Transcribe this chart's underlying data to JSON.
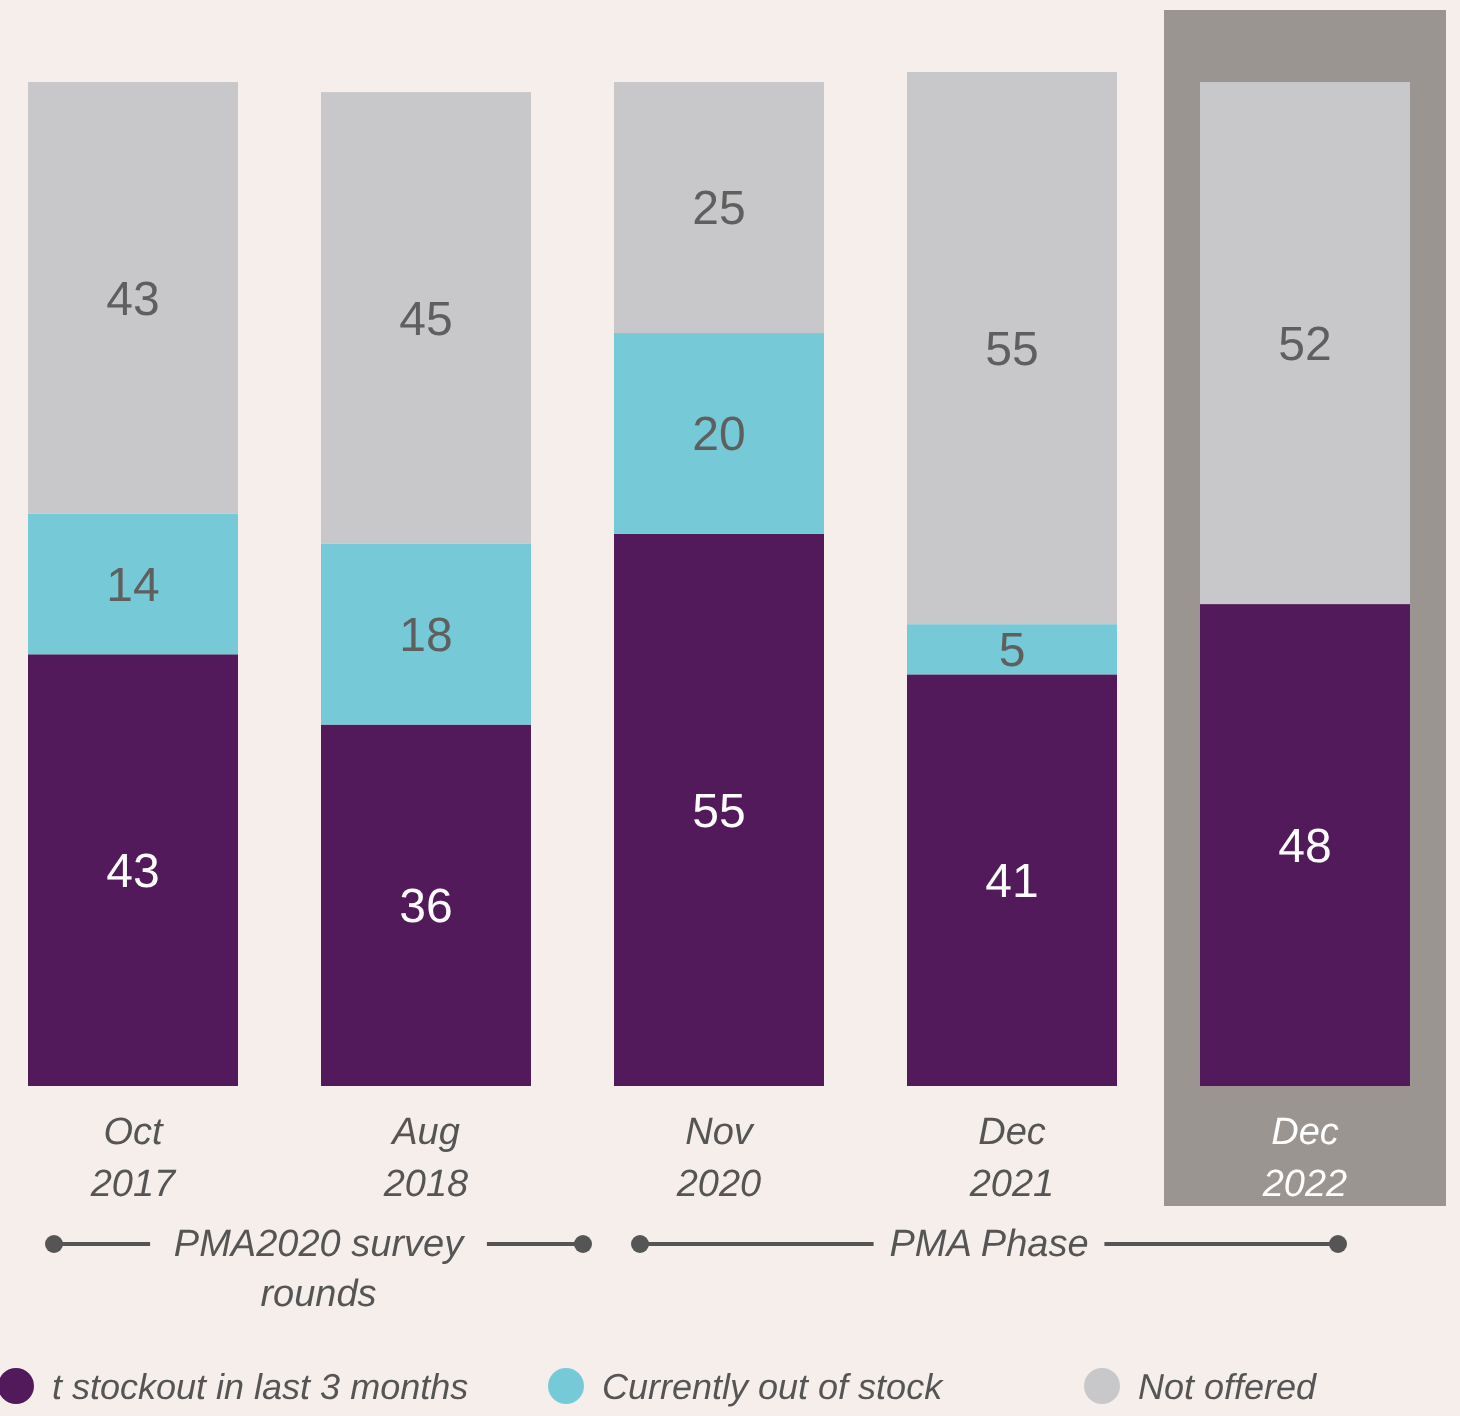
{
  "chart_data": {
    "type": "bar",
    "stacked": true,
    "data_labels": true,
    "legend": "bottom",
    "categories": [
      "Oct 2017",
      "Aug 2018",
      "Nov 2020",
      "Dec 2021",
      "Dec 2022"
    ],
    "series": [
      {
        "name": "t stockout in last 3 months",
        "color": "#521a5a",
        "values": [
          43,
          36,
          55,
          41,
          48
        ]
      },
      {
        "name": "Currently out of stock",
        "color": "#76cad8",
        "values": [
          14,
          18,
          20,
          5,
          null
        ]
      },
      {
        "name": "Not offered",
        "color": "#c8c8ca",
        "values": [
          43,
          45,
          25,
          55,
          52
        ]
      }
    ],
    "bands": [
      {
        "axis": "x",
        "from": "Dec 2022",
        "to": "Dec 2022",
        "color": "#9a9591"
      }
    ],
    "annotations": [
      "PMA2020 survey rounds",
      "PMA Phase"
    ]
  }
}
